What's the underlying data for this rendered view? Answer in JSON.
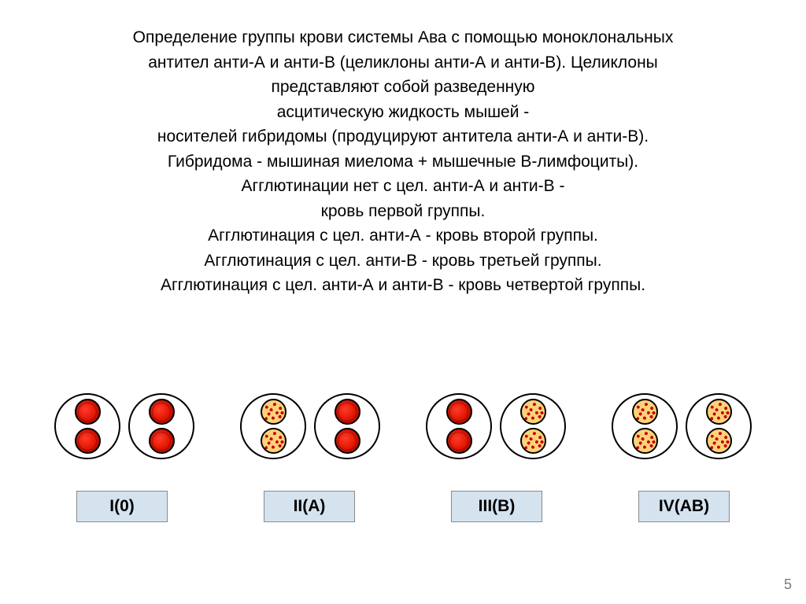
{
  "text_lines": [
    "Определение группы крови системы Ава с помощью моноклональных",
    "антител анти-А и анти-В (целиклоны анти-А и анти-В). Целиклоны",
    "представляют собой разведенную",
    "асцитическую жидкость мышей -",
    "носителей гибридомы (продуцируют антитела анти-А и анти-В).",
    "Гибридома - мышиная миелома + мышечные В-лимфоциты).",
    "Агглютинации нет с цел. анти-А и анти-В -",
    "кровь первой группы.",
    "Агглютинация с цел. анти-А - кровь второй группы.",
    "Агглютинация с цел. анти-В - кровь третьей группы.",
    "Агглютинация с цел. анти-А и анти-В - кровь четвертой группы."
  ],
  "groups": [
    {
      "label": "I(0)",
      "left": "smooth",
      "right": "smooth"
    },
    {
      "label": "II(A)",
      "left": "grainy",
      "right": "smooth"
    },
    {
      "label": "III(B)",
      "left": "smooth",
      "right": "grainy"
    },
    {
      "label": "IV(AB)",
      "left": "grainy",
      "right": "grainy"
    }
  ],
  "page_number": "5",
  "style": {
    "background": "#ffffff",
    "text_color": "#000000",
    "font_size_pt": 16,
    "label_bg": "#d5e3ef",
    "label_border": "#8a8a8a",
    "circle_border": "#000000",
    "drop_smooth_color": "#e01500",
    "drop_grainy_bg": "#ffd27a",
    "drop_grainy_dot": "#c40000",
    "page_num_color": "#7a7a7a"
  }
}
